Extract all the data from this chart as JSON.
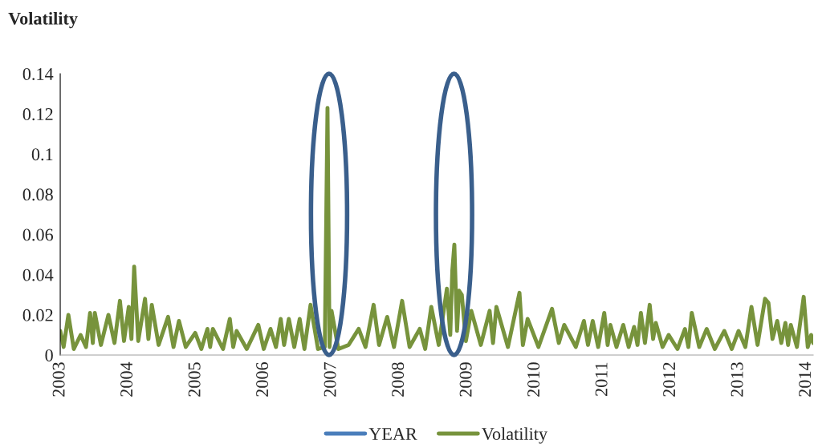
{
  "chart_data": {
    "type": "line",
    "title": "Volatility",
    "xlim": [
      2003,
      2014.1
    ],
    "xticks": [
      2003,
      2004,
      2005,
      2006,
      2007,
      2008,
      2009,
      2010,
      2011,
      2012,
      2013,
      2014
    ],
    "ylim": [
      0,
      0.14
    ],
    "yticks": [
      0,
      0.02,
      0.04,
      0.06,
      0.08,
      0.1,
      0.12,
      0.14
    ],
    "grid": false,
    "legend": "bottom",
    "line_style": "solid",
    "marker": "none",
    "series": [
      {
        "name": "YEAR",
        "color": "#4a7ebb"
      },
      {
        "name": "Volatility",
        "color": "#77933c",
        "x": [
          2003.0,
          2003.05,
          2003.12,
          2003.2,
          2003.3,
          2003.38,
          2003.44,
          2003.48,
          2003.51,
          2003.6,
          2003.71,
          2003.8,
          2003.88,
          2003.94,
          2004.01,
          2004.05,
          2004.09,
          2004.15,
          2004.25,
          2004.3,
          2004.35,
          2004.45,
          2004.59,
          2004.67,
          2004.75,
          2004.85,
          2004.99,
          2005.08,
          2005.17,
          2005.21,
          2005.25,
          2005.4,
          2005.5,
          2005.55,
          2005.6,
          2005.75,
          2005.92,
          2006.0,
          2006.1,
          2006.18,
          2006.25,
          2006.3,
          2006.37,
          2006.45,
          2006.53,
          2006.6,
          2006.69,
          2006.8,
          2006.9,
          2006.94,
          2006.97,
          2007.0,
          2007.1,
          2007.25,
          2007.4,
          2007.5,
          2007.62,
          2007.7,
          2007.82,
          2007.92,
          2008.04,
          2008.15,
          2008.3,
          2008.38,
          2008.47,
          2008.58,
          2008.7,
          2008.75,
          2008.78,
          2008.81,
          2008.85,
          2008.88,
          2008.92,
          2008.98,
          2009.06,
          2009.2,
          2009.33,
          2009.38,
          2009.43,
          2009.6,
          2009.77,
          2009.82,
          2009.89,
          2010.05,
          2010.25,
          2010.35,
          2010.43,
          2010.6,
          2010.72,
          2010.78,
          2010.85,
          2010.93,
          2011.02,
          2011.07,
          2011.11,
          2011.2,
          2011.3,
          2011.38,
          2011.46,
          2011.51,
          2011.56,
          2011.62,
          2011.69,
          2011.74,
          2011.78,
          2011.88,
          2011.97,
          2012.1,
          2012.21,
          2012.26,
          2012.31,
          2012.42,
          2012.53,
          2012.65,
          2012.79,
          2012.9,
          2013.0,
          2013.1,
          2013.19,
          2013.28,
          2013.39,
          2013.44,
          2013.5,
          2013.57,
          2013.63,
          2013.69,
          2013.73,
          2013.77,
          2013.86,
          2013.96,
          2014.02,
          2014.07,
          2014.1
        ],
        "values": [
          0.012,
          0.004,
          0.02,
          0.003,
          0.01,
          0.004,
          0.021,
          0.006,
          0.021,
          0.005,
          0.02,
          0.006,
          0.027,
          0.007,
          0.024,
          0.008,
          0.044,
          0.007,
          0.028,
          0.008,
          0.025,
          0.005,
          0.019,
          0.004,
          0.017,
          0.004,
          0.011,
          0.003,
          0.013,
          0.004,
          0.013,
          0.003,
          0.018,
          0.004,
          0.012,
          0.003,
          0.015,
          0.003,
          0.013,
          0.004,
          0.018,
          0.005,
          0.018,
          0.004,
          0.018,
          0.003,
          0.025,
          0.003,
          0.004,
          0.123,
          0.004,
          0.022,
          0.003,
          0.005,
          0.013,
          0.004,
          0.025,
          0.005,
          0.019,
          0.004,
          0.027,
          0.004,
          0.013,
          0.003,
          0.024,
          0.005,
          0.033,
          0.01,
          0.042,
          0.055,
          0.012,
          0.032,
          0.03,
          0.007,
          0.022,
          0.005,
          0.022,
          0.006,
          0.024,
          0.004,
          0.031,
          0.005,
          0.018,
          0.004,
          0.023,
          0.006,
          0.015,
          0.004,
          0.017,
          0.005,
          0.017,
          0.004,
          0.021,
          0.005,
          0.015,
          0.004,
          0.015,
          0.004,
          0.014,
          0.005,
          0.021,
          0.006,
          0.025,
          0.008,
          0.016,
          0.004,
          0.01,
          0.003,
          0.013,
          0.004,
          0.021,
          0.004,
          0.013,
          0.003,
          0.012,
          0.003,
          0.012,
          0.004,
          0.024,
          0.005,
          0.028,
          0.026,
          0.008,
          0.017,
          0.006,
          0.016,
          0.005,
          0.015,
          0.004,
          0.029,
          0.004,
          0.01,
          0.006
        ]
      }
    ]
  }
}
